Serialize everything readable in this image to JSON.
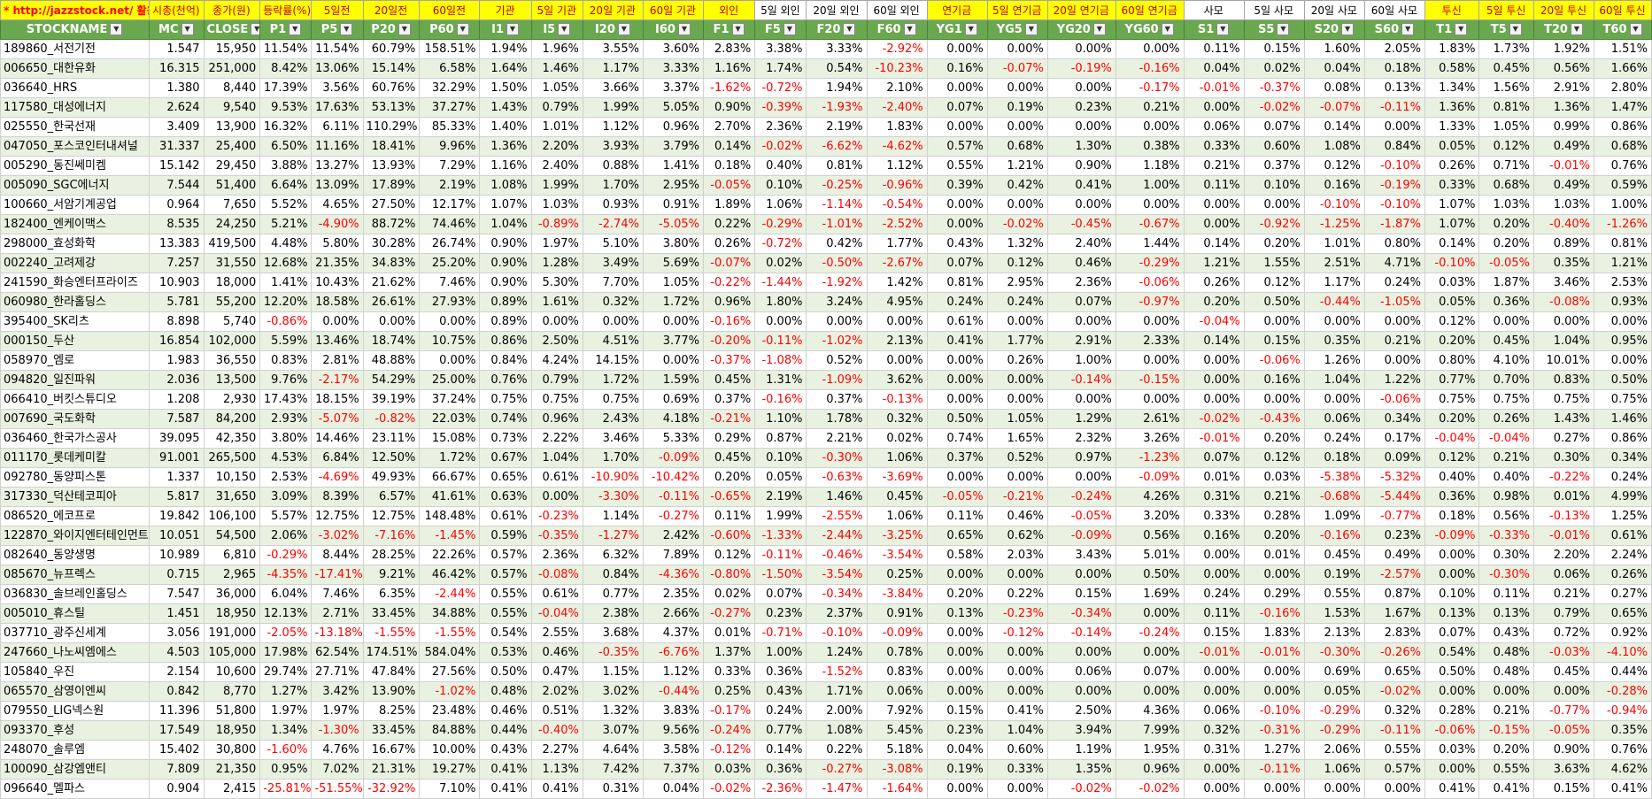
{
  "header_labels": [
    "* http://jazzstock.net/ 활용",
    "시총(천억)",
    "종가(원)",
    "등락률(%)",
    "5일전",
    "20일전",
    "60일전",
    "기관",
    "5일 기관",
    "20일 기관",
    "60일 기관",
    "외인",
    "5일 외인",
    "20일 외인",
    "60일 외인",
    "연기금",
    "5일 연기금",
    "20일 연기금",
    "60일 연기금",
    "사모",
    "5일 사모",
    "20일 사모",
    "60일 사모",
    "투신",
    "5일 투신",
    "20일 투신",
    "60일 투신"
  ],
  "header_highlight": [
    true,
    true,
    true,
    true,
    true,
    true,
    true,
    true,
    true,
    true,
    true,
    true,
    false,
    false,
    false,
    true,
    true,
    true,
    true,
    false,
    false,
    false,
    false,
    true,
    true,
    true,
    true
  ],
  "columns": [
    "STOCKNAME",
    "MC",
    "CLOSE",
    "P1",
    "P5",
    "P20",
    "P60",
    "I1",
    "I5",
    "I20",
    "I60",
    "F1",
    "F5",
    "F20",
    "F60",
    "YG1",
    "YG5",
    "YG20",
    "YG60",
    "S1",
    "S5",
    "S20",
    "S60",
    "T1",
    "T5",
    "T20",
    "T60"
  ],
  "rows": [
    [
      "189860_서전기전",
      "1.547",
      "15,950",
      "11.54%",
      "11.54%",
      "60.79%",
      "158.51%",
      "1.94%",
      "1.96%",
      "3.55%",
      "3.60%",
      "2.83%",
      "3.38%",
      "3.33%",
      "-2.92%",
      "0.00%",
      "0.00%",
      "0.00%",
      "0.00%",
      "0.11%",
      "0.15%",
      "1.60%",
      "2.05%",
      "1.83%",
      "1.73%",
      "1.92%",
      "1.51%"
    ],
    [
      "006650_대한유화",
      "16.315",
      "251,000",
      "8.42%",
      "13.06%",
      "15.14%",
      "6.58%",
      "1.64%",
      "1.46%",
      "1.17%",
      "3.33%",
      "1.16%",
      "1.74%",
      "0.54%",
      "-10.23%",
      "0.16%",
      "-0.07%",
      "-0.19%",
      "-0.16%",
      "0.04%",
      "0.02%",
      "0.04%",
      "0.18%",
      "0.58%",
      "0.45%",
      "0.56%",
      "1.66%"
    ],
    [
      "036640_HRS",
      "1.380",
      "8,440",
      "17.39%",
      "3.56%",
      "60.76%",
      "32.29%",
      "1.50%",
      "1.05%",
      "3.66%",
      "3.37%",
      "-1.62%",
      "-0.72%",
      "1.94%",
      "2.10%",
      "0.00%",
      "0.00%",
      "0.00%",
      "-0.17%",
      "-0.01%",
      "-0.37%",
      "0.08%",
      "0.13%",
      "1.34%",
      "1.56%",
      "2.91%",
      "2.80%"
    ],
    [
      "117580_대성에너지",
      "2.624",
      "9,540",
      "9.53%",
      "17.63%",
      "53.13%",
      "37.27%",
      "1.43%",
      "0.79%",
      "1.99%",
      "5.05%",
      "0.90%",
      "-0.39%",
      "-1.93%",
      "-2.40%",
      "0.07%",
      "0.19%",
      "0.23%",
      "0.21%",
      "0.00%",
      "-0.02%",
      "-0.07%",
      "-0.11%",
      "1.36%",
      "0.81%",
      "1.36%",
      "1.47%"
    ],
    [
      "025550_한국선재",
      "3.409",
      "13,900",
      "16.32%",
      "6.11%",
      "110.29%",
      "85.33%",
      "1.40%",
      "1.01%",
      "1.12%",
      "0.96%",
      "2.70%",
      "2.36%",
      "2.19%",
      "1.83%",
      "0.00%",
      "0.00%",
      "0.00%",
      "0.00%",
      "0.06%",
      "0.07%",
      "0.14%",
      "0.00%",
      "1.33%",
      "1.05%",
      "0.99%",
      "0.86%"
    ],
    [
      "047050_포스코인터내셔널",
      "31.337",
      "25,400",
      "6.50%",
      "11.16%",
      "18.41%",
      "9.96%",
      "1.36%",
      "2.20%",
      "3.93%",
      "3.79%",
      "0.14%",
      "-0.02%",
      "-6.62%",
      "-4.62%",
      "0.57%",
      "0.68%",
      "1.30%",
      "0.38%",
      "0.33%",
      "0.60%",
      "1.08%",
      "0.84%",
      "0.05%",
      "0.12%",
      "0.49%",
      "0.68%"
    ],
    [
      "005290_동진쎄미켐",
      "15.142",
      "29,450",
      "3.88%",
      "13.27%",
      "13.93%",
      "7.29%",
      "1.16%",
      "2.40%",
      "0.88%",
      "1.41%",
      "0.18%",
      "0.40%",
      "0.81%",
      "1.12%",
      "0.55%",
      "1.21%",
      "0.90%",
      "1.18%",
      "0.21%",
      "0.37%",
      "0.12%",
      "-0.10%",
      "0.26%",
      "0.71%",
      "-0.01%",
      "0.76%"
    ],
    [
      "005090_SGC에너지",
      "7.544",
      "51,400",
      "6.64%",
      "13.09%",
      "17.89%",
      "2.19%",
      "1.08%",
      "1.99%",
      "1.70%",
      "2.95%",
      "-0.05%",
      "0.10%",
      "-0.25%",
      "-0.96%",
      "0.39%",
      "0.42%",
      "0.41%",
      "1.00%",
      "0.11%",
      "0.10%",
      "0.16%",
      "-0.19%",
      "0.33%",
      "0.68%",
      "0.49%",
      "0.59%"
    ],
    [
      "100660_서암기계공업",
      "0.964",
      "7,650",
      "5.52%",
      "4.65%",
      "27.50%",
      "12.17%",
      "1.07%",
      "1.03%",
      "0.93%",
      "0.91%",
      "1.89%",
      "1.06%",
      "-1.14%",
      "-0.54%",
      "0.00%",
      "0.00%",
      "0.00%",
      "0.00%",
      "0.00%",
      "0.00%",
      "-0.10%",
      "-0.10%",
      "1.07%",
      "1.03%",
      "1.03%",
      "1.00%"
    ],
    [
      "182400_엔케이맥스",
      "8.535",
      "24,250",
      "5.21%",
      "-4.90%",
      "88.72%",
      "74.46%",
      "1.04%",
      "-0.89%",
      "-2.74%",
      "-5.05%",
      "0.22%",
      "-0.29%",
      "-1.01%",
      "-2.52%",
      "0.00%",
      "-0.02%",
      "-0.45%",
      "-0.67%",
      "0.00%",
      "-0.92%",
      "-1.25%",
      "-1.87%",
      "1.07%",
      "0.20%",
      "-0.40%",
      "-1.26%"
    ],
    [
      "298000_효성화학",
      "13.383",
      "419,500",
      "4.48%",
      "5.80%",
      "30.28%",
      "26.74%",
      "0.90%",
      "1.97%",
      "5.10%",
      "3.80%",
      "0.26%",
      "-0.72%",
      "0.42%",
      "1.77%",
      "0.43%",
      "1.32%",
      "2.40%",
      "1.44%",
      "0.14%",
      "0.20%",
      "1.01%",
      "0.80%",
      "0.14%",
      "0.20%",
      "0.89%",
      "0.81%"
    ],
    [
      "002240_고려제강",
      "7.257",
      "31,550",
      "12.68%",
      "21.35%",
      "34.83%",
      "25.20%",
      "0.90%",
      "1.28%",
      "3.49%",
      "5.69%",
      "-0.07%",
      "0.02%",
      "-0.50%",
      "-2.67%",
      "0.07%",
      "0.12%",
      "0.46%",
      "-0.29%",
      "1.21%",
      "1.55%",
      "2.51%",
      "4.71%",
      "-0.10%",
      "-0.05%",
      "0.35%",
      "1.21%"
    ],
    [
      "241590_화승엔터프라이즈",
      "10.903",
      "18,000",
      "1.41%",
      "10.43%",
      "21.62%",
      "7.46%",
      "0.90%",
      "5.30%",
      "7.70%",
      "1.05%",
      "-0.22%",
      "-1.44%",
      "-1.92%",
      "1.42%",
      "0.81%",
      "2.95%",
      "2.36%",
      "-0.06%",
      "0.26%",
      "0.12%",
      "1.17%",
      "0.24%",
      "0.03%",
      "1.87%",
      "3.46%",
      "2.53%"
    ],
    [
      "060980_한라홀딩스",
      "5.781",
      "55,200",
      "12.20%",
      "18.58%",
      "26.61%",
      "27.93%",
      "0.89%",
      "1.61%",
      "0.32%",
      "1.72%",
      "0.96%",
      "1.80%",
      "3.24%",
      "4.95%",
      "0.24%",
      "0.24%",
      "0.07%",
      "-0.97%",
      "0.20%",
      "0.50%",
      "-0.44%",
      "-1.05%",
      "0.05%",
      "0.36%",
      "-0.08%",
      "0.93%"
    ],
    [
      "395400_SK리츠",
      "8.898",
      "5,740",
      "-0.86%",
      "0.00%",
      "0.00%",
      "0.00%",
      "0.89%",
      "0.00%",
      "0.00%",
      "0.00%",
      "-0.16%",
      "0.00%",
      "0.00%",
      "0.00%",
      "0.61%",
      "0.00%",
      "0.00%",
      "0.00%",
      "-0.04%",
      "0.00%",
      "0.00%",
      "0.00%",
      "0.12%",
      "0.00%",
      "0.00%",
      "0.00%"
    ],
    [
      "000150_두산",
      "16.854",
      "102,000",
      "5.59%",
      "13.46%",
      "18.74%",
      "10.75%",
      "0.86%",
      "2.50%",
      "4.51%",
      "3.77%",
      "-0.20%",
      "-0.11%",
      "-1.02%",
      "2.13%",
      "0.41%",
      "1.77%",
      "2.91%",
      "2.33%",
      "0.14%",
      "0.15%",
      "0.35%",
      "0.21%",
      "0.20%",
      "0.45%",
      "1.04%",
      "0.95%"
    ],
    [
      "058970_엠로",
      "1.983",
      "36,550",
      "0.83%",
      "2.81%",
      "48.88%",
      "0.00%",
      "0.84%",
      "4.24%",
      "14.15%",
      "0.00%",
      "-0.37%",
      "-1.08%",
      "0.52%",
      "0.00%",
      "0.00%",
      "0.26%",
      "1.00%",
      "0.00%",
      "0.00%",
      "-0.06%",
      "1.26%",
      "0.00%",
      "0.80%",
      "4.10%",
      "10.01%",
      "0.00%"
    ],
    [
      "094820_일진파워",
      "2.036",
      "13,500",
      "9.76%",
      "-2.17%",
      "54.29%",
      "25.00%",
      "0.76%",
      "0.79%",
      "1.72%",
      "1.59%",
      "0.45%",
      "1.31%",
      "-1.09%",
      "3.62%",
      "0.00%",
      "0.00%",
      "-0.14%",
      "-0.15%",
      "0.00%",
      "0.16%",
      "1.04%",
      "1.22%",
      "0.77%",
      "0.70%",
      "0.83%",
      "0.50%"
    ],
    [
      "066410_버킷스튜디오",
      "1.208",
      "2,930",
      "17.43%",
      "18.15%",
      "39.19%",
      "37.24%",
      "0.75%",
      "0.75%",
      "0.75%",
      "0.69%",
      "0.37%",
      "-0.16%",
      "0.37%",
      "-0.13%",
      "0.00%",
      "0.00%",
      "0.00%",
      "0.00%",
      "0.00%",
      "0.00%",
      "0.00%",
      "-0.06%",
      "0.75%",
      "0.75%",
      "0.75%",
      "0.75%"
    ],
    [
      "007690_국도화학",
      "7.587",
      "84,200",
      "2.93%",
      "-5.07%",
      "-0.82%",
      "22.03%",
      "0.74%",
      "0.96%",
      "2.43%",
      "4.18%",
      "-0.21%",
      "1.10%",
      "1.78%",
      "0.32%",
      "0.50%",
      "1.05%",
      "1.29%",
      "2.61%",
      "-0.02%",
      "-0.43%",
      "0.06%",
      "0.34%",
      "0.20%",
      "0.26%",
      "1.43%",
      "1.46%"
    ],
    [
      "036460_한국가스공사",
      "39.095",
      "42,350",
      "3.80%",
      "14.46%",
      "23.11%",
      "15.08%",
      "0.73%",
      "2.22%",
      "3.46%",
      "5.33%",
      "0.29%",
      "0.87%",
      "2.21%",
      "0.02%",
      "0.74%",
      "1.65%",
      "2.32%",
      "3.26%",
      "-0.01%",
      "0.20%",
      "0.24%",
      "0.17%",
      "-0.04%",
      "-0.04%",
      "0.27%",
      "0.86%"
    ],
    [
      "011170_롯데케미칼",
      "91.001",
      "265,500",
      "4.53%",
      "6.84%",
      "12.50%",
      "1.72%",
      "0.67%",
      "1.04%",
      "1.70%",
      "-0.09%",
      "0.45%",
      "0.10%",
      "-0.30%",
      "1.06%",
      "0.37%",
      "0.52%",
      "0.97%",
      "-1.23%",
      "0.07%",
      "0.12%",
      "0.18%",
      "0.09%",
      "0.12%",
      "0.21%",
      "0.30%",
      "0.34%"
    ],
    [
      "092780_동양피스톤",
      "1.337",
      "10,150",
      "2.53%",
      "-4.69%",
      "49.93%",
      "66.67%",
      "0.65%",
      "0.61%",
      "-10.90%",
      "-10.42%",
      "0.20%",
      "0.05%",
      "-0.63%",
      "-3.69%",
      "0.00%",
      "0.00%",
      "0.00%",
      "-0.09%",
      "0.01%",
      "0.03%",
      "-5.38%",
      "-5.32%",
      "0.40%",
      "0.40%",
      "-0.22%",
      "0.24%"
    ],
    [
      "317330_덕산테코피아",
      "5.817",
      "31,650",
      "3.09%",
      "8.39%",
      "6.57%",
      "41.61%",
      "0.63%",
      "0.00%",
      "-3.30%",
      "-0.11%",
      "-0.65%",
      "2.19%",
      "1.46%",
      "0.45%",
      "-0.05%",
      "-0.21%",
      "-0.24%",
      "4.26%",
      "0.31%",
      "0.21%",
      "-0.68%",
      "-5.44%",
      "0.36%",
      "0.98%",
      "0.01%",
      "4.99%"
    ],
    [
      "086520_에코프로",
      "19.842",
      "106,100",
      "5.57%",
      "12.75%",
      "12.75%",
      "148.48%",
      "0.61%",
      "-0.23%",
      "1.14%",
      "-0.27%",
      "0.11%",
      "1.99%",
      "-2.55%",
      "1.06%",
      "0.11%",
      "0.46%",
      "-0.05%",
      "3.20%",
      "0.33%",
      "0.28%",
      "1.09%",
      "-0.77%",
      "0.18%",
      "0.56%",
      "-0.13%",
      "1.25%"
    ],
    [
      "122870_와이지엔터테인먼트",
      "10.051",
      "54,500",
      "2.06%",
      "-3.02%",
      "-7.16%",
      "-1.45%",
      "0.59%",
      "-0.35%",
      "-1.27%",
      "2.42%",
      "-0.60%",
      "-1.33%",
      "-2.44%",
      "-3.25%",
      "0.65%",
      "0.62%",
      "-0.09%",
      "0.56%",
      "0.16%",
      "0.20%",
      "-0.16%",
      "0.23%",
      "-0.09%",
      "-0.33%",
      "-0.01%",
      "0.61%"
    ],
    [
      "082640_동양생명",
      "10.989",
      "6,810",
      "-0.29%",
      "8.44%",
      "28.25%",
      "22.26%",
      "0.57%",
      "2.36%",
      "6.32%",
      "7.89%",
      "0.12%",
      "-0.11%",
      "-0.46%",
      "-3.54%",
      "0.58%",
      "2.03%",
      "3.43%",
      "5.01%",
      "0.00%",
      "0.01%",
      "0.45%",
      "0.49%",
      "0.00%",
      "0.30%",
      "2.20%",
      "2.24%"
    ],
    [
      "085670_뉴프렉스",
      "0.715",
      "2,965",
      "-4.35%",
      "-17.41%",
      "9.21%",
      "46.42%",
      "0.57%",
      "-0.08%",
      "0.84%",
      "-4.36%",
      "-0.80%",
      "-1.50%",
      "-3.54%",
      "0.25%",
      "0.00%",
      "0.00%",
      "0.00%",
      "0.50%",
      "0.00%",
      "0.00%",
      "0.19%",
      "-2.57%",
      "0.00%",
      "-0.30%",
      "0.06%",
      "0.26%"
    ],
    [
      "036830_솔브레인홀딩스",
      "7.547",
      "36,000",
      "6.04%",
      "7.46%",
      "6.35%",
      "-2.44%",
      "0.55%",
      "0.61%",
      "0.77%",
      "2.35%",
      "0.02%",
      "0.07%",
      "-0.34%",
      "-3.84%",
      "0.20%",
      "0.22%",
      "0.15%",
      "1.69%",
      "0.24%",
      "0.29%",
      "0.55%",
      "0.87%",
      "0.10%",
      "0.11%",
      "0.21%",
      "0.27%"
    ],
    [
      "005010_휴스틸",
      "1.451",
      "18,950",
      "12.13%",
      "2.71%",
      "33.45%",
      "34.88%",
      "0.55%",
      "-0.04%",
      "2.38%",
      "2.66%",
      "-0.27%",
      "0.23%",
      "2.37%",
      "0.91%",
      "0.13%",
      "-0.23%",
      "-0.34%",
      "0.00%",
      "0.11%",
      "-0.16%",
      "1.53%",
      "1.67%",
      "0.13%",
      "0.13%",
      "0.79%",
      "0.65%"
    ],
    [
      "037710_광주신세계",
      "3.056",
      "191,000",
      "-2.05%",
      "-13.18%",
      "-1.55%",
      "-1.55%",
      "0.54%",
      "2.55%",
      "3.68%",
      "4.37%",
      "0.01%",
      "-0.71%",
      "-0.10%",
      "-0.09%",
      "0.00%",
      "-0.12%",
      "-0.14%",
      "-0.24%",
      "0.15%",
      "1.83%",
      "2.13%",
      "2.83%",
      "0.07%",
      "0.43%",
      "0.72%",
      "0.92%"
    ],
    [
      "247660_나노씨엠에스",
      "4.503",
      "105,000",
      "17.98%",
      "62.54%",
      "174.51%",
      "584.04%",
      "0.53%",
      "0.46%",
      "-0.35%",
      "-6.76%",
      "1.37%",
      "1.00%",
      "1.24%",
      "0.78%",
      "0.00%",
      "0.00%",
      "0.00%",
      "0.00%",
      "-0.01%",
      "-0.01%",
      "-0.30%",
      "-0.26%",
      "0.54%",
      "0.48%",
      "-0.03%",
      "-4.10%"
    ],
    [
      "105840_우진",
      "2.154",
      "10,600",
      "29.74%",
      "27.71%",
      "47.84%",
      "27.56%",
      "0.50%",
      "0.47%",
      "1.15%",
      "1.12%",
      "0.33%",
      "0.36%",
      "-1.52%",
      "0.83%",
      "0.00%",
      "0.00%",
      "0.06%",
      "0.07%",
      "0.00%",
      "0.00%",
      "0.69%",
      "0.65%",
      "0.50%",
      "0.48%",
      "0.45%",
      "0.44%"
    ],
    [
      "065570_삼영이엔씨",
      "0.842",
      "8,770",
      "1.27%",
      "3.42%",
      "13.90%",
      "-1.02%",
      "0.48%",
      "2.02%",
      "3.02%",
      "-0.44%",
      "0.25%",
      "0.43%",
      "1.71%",
      "0.06%",
      "0.00%",
      "0.00%",
      "0.00%",
      "0.00%",
      "0.00%",
      "0.00%",
      "0.05%",
      "-0.02%",
      "0.00%",
      "0.00%",
      "0.00%",
      "-0.28%"
    ],
    [
      "079550_LIG넥스원",
      "11.396",
      "51,800",
      "1.97%",
      "1.97%",
      "8.25%",
      "23.48%",
      "0.46%",
      "0.51%",
      "1.32%",
      "3.83%",
      "-0.17%",
      "0.24%",
      "2.00%",
      "7.92%",
      "0.15%",
      "0.41%",
      "2.50%",
      "4.36%",
      "0.06%",
      "-0.10%",
      "-0.29%",
      "0.32%",
      "0.28%",
      "0.21%",
      "-0.77%",
      "-0.94%"
    ],
    [
      "093370_후성",
      "17.549",
      "18,950",
      "1.34%",
      "-1.30%",
      "33.45%",
      "84.88%",
      "0.44%",
      "-0.40%",
      "3.07%",
      "9.56%",
      "-0.24%",
      "0.77%",
      "1.08%",
      "5.45%",
      "0.23%",
      "1.04%",
      "3.94%",
      "7.99%",
      "0.32%",
      "-0.31%",
      "-0.29%",
      "-0.11%",
      "-0.06%",
      "-0.15%",
      "-0.05%",
      "0.35%"
    ],
    [
      "248070_솔루엠",
      "15.402",
      "30,800",
      "-1.60%",
      "4.76%",
      "16.67%",
      "10.00%",
      "0.43%",
      "2.27%",
      "4.64%",
      "3.58%",
      "-0.12%",
      "0.14%",
      "0.22%",
      "5.18%",
      "0.04%",
      "0.60%",
      "1.19%",
      "1.95%",
      "0.31%",
      "1.27%",
      "2.06%",
      "0.55%",
      "0.03%",
      "0.20%",
      "0.90%",
      "0.76%"
    ],
    [
      "100090_삼강엠앤티",
      "7.809",
      "21,350",
      "0.95%",
      "7.02%",
      "21.31%",
      "19.27%",
      "0.41%",
      "1.13%",
      "7.42%",
      "7.37%",
      "0.03%",
      "0.36%",
      "-0.27%",
      "-3.08%",
      "0.19%",
      "0.33%",
      "1.35%",
      "0.96%",
      "0.00%",
      "-0.11%",
      "1.06%",
      "0.57%",
      "0.00%",
      "0.55%",
      "3.63%",
      "4.62%"
    ],
    [
      "096640_멜파스",
      "0.904",
      "2,415",
      "-25.81%",
      "-51.55%",
      "-32.92%",
      "7.10%",
      "0.41%",
      "0.41%",
      "0.31%",
      "0.04%",
      "-0.02%",
      "-2.36%",
      "-1.47%",
      "-1.64%",
      "0.00%",
      "0.00%",
      "-0.02%",
      "-0.02%",
      "0.00%",
      "0.00%",
      "0.00%",
      "0.00%",
      "0.41%",
      "0.41%",
      "0.15%",
      "0.41%"
    ]
  ]
}
